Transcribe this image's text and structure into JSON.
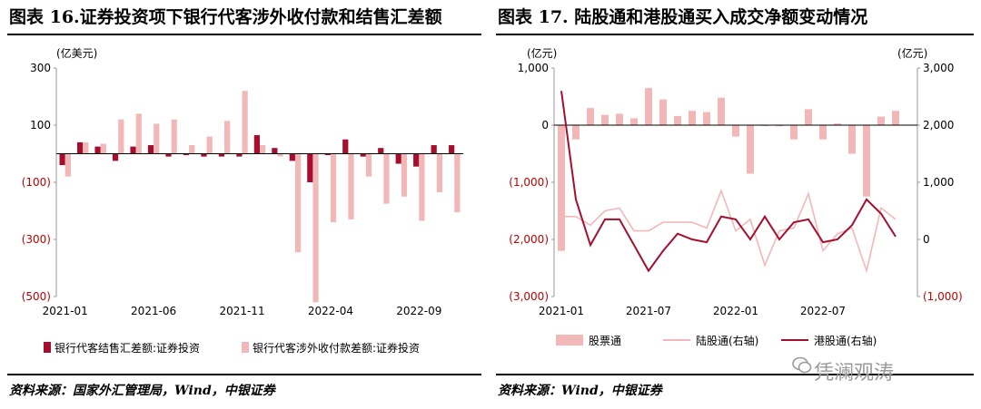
{
  "charts": [
    {
      "figure_title": "图表 16.证券投资项下银行代客涉外收付款和结售汇差额",
      "source": "资料来源：国家外汇管理局，Wind，中银证券"
    },
    {
      "figure_title": "图表 17.  陆股通和港股通买入成交净额变动情况",
      "source": "资料来源：Wind，中银证券"
    }
  ],
  "watermark": "凭澜观涛",
  "chart_data": [
    {
      "type": "bar",
      "unit_label": "(亿美元)",
      "ylim": [
        -500,
        300
      ],
      "yticks": [
        "300",
        "100",
        "(100)",
        "(300)",
        "(500)"
      ],
      "ytick_values": [
        300,
        100,
        -100,
        -300,
        -500
      ],
      "xtick_labels": [
        "2021-01",
        "2021-06",
        "2021-11",
        "2022-04",
        "2022-09"
      ],
      "xtick_index": [
        0,
        5,
        10,
        15,
        20
      ],
      "categories": [
        "2021-01",
        "2021-02",
        "2021-03",
        "2021-04",
        "2021-05",
        "2021-06",
        "2021-07",
        "2021-08",
        "2021-09",
        "2021-10",
        "2021-11",
        "2021-12",
        "2022-01",
        "2022-02",
        "2022-03",
        "2022-04",
        "2022-05",
        "2022-06",
        "2022-07",
        "2022-08",
        "2022-09",
        "2022-10",
        "2022-11"
      ],
      "legend_position": "bottom",
      "series": [
        {
          "name": "银行代客结售汇差额:证券投资",
          "color": "#a50f2d",
          "values": [
            -40,
            40,
            25,
            -25,
            25,
            30,
            -10,
            -5,
            -10,
            -10,
            -10,
            65,
            20,
            -25,
            -100,
            -5,
            50,
            -10,
            20,
            -35,
            -45,
            30,
            30
          ]
        },
        {
          "name": "银行代客涉外收付款差额:证券投资",
          "color": "#f2b8b8",
          "values": [
            -80,
            40,
            35,
            120,
            140,
            105,
            120,
            30,
            60,
            115,
            220,
            30,
            -10,
            -345,
            -520,
            -240,
            -230,
            -80,
            -175,
            -150,
            -235,
            -135,
            -205
          ]
        }
      ]
    },
    {
      "type": "bar+line",
      "unit_label_left": "(亿元)",
      "unit_label_right": "(亿元)",
      "ylim_left": [
        -3000,
        1000
      ],
      "ylim_right": [
        -1000,
        3000
      ],
      "yticks_left": [
        "1,000",
        "0",
        "(1,000)",
        "(2,000)",
        "(3,000)"
      ],
      "yticks_left_values": [
        1000,
        0,
        -1000,
        -2000,
        -3000
      ],
      "yticks_right": [
        "3,000",
        "2,000",
        "1,000",
        "0",
        "(1,000)"
      ],
      "yticks_right_values": [
        3000,
        2000,
        1000,
        0,
        -1000
      ],
      "xtick_labels": [
        "2021-01",
        "2021-07",
        "2022-01",
        "2022-07"
      ],
      "xtick_index": [
        0,
        6,
        12,
        18
      ],
      "n_points": 25,
      "legend_position": "bottom",
      "series": [
        {
          "name": "股票通",
          "axis": "left",
          "kind": "bar",
          "color": "#f2b8b8",
          "values": [
            -2200,
            -250,
            300,
            180,
            200,
            120,
            650,
            450,
            160,
            250,
            230,
            480,
            -200,
            -850,
            -10,
            -20,
            -250,
            280,
            -250,
            30,
            -500,
            -1250,
            150,
            250,
            null
          ]
        },
        {
          "name": "陆股通(右轴)",
          "axis": "right",
          "kind": "line",
          "color": "#f2b8b8",
          "values": [
            400,
            400,
            250,
            500,
            550,
            150,
            150,
            300,
            300,
            300,
            200,
            850,
            150,
            350,
            -450,
            150,
            200,
            800,
            -200,
            100,
            200,
            -550,
            550,
            350,
            null
          ]
        },
        {
          "name": "港股通(右轴)",
          "axis": "right",
          "kind": "line",
          "color": "#a50f2d",
          "values": [
            2600,
            700,
            -100,
            350,
            350,
            -100,
            -550,
            -200,
            100,
            0,
            -50,
            400,
            350,
            0,
            400,
            0,
            300,
            350,
            -50,
            0,
            250,
            700,
            450,
            50,
            null
          ]
        }
      ]
    }
  ]
}
